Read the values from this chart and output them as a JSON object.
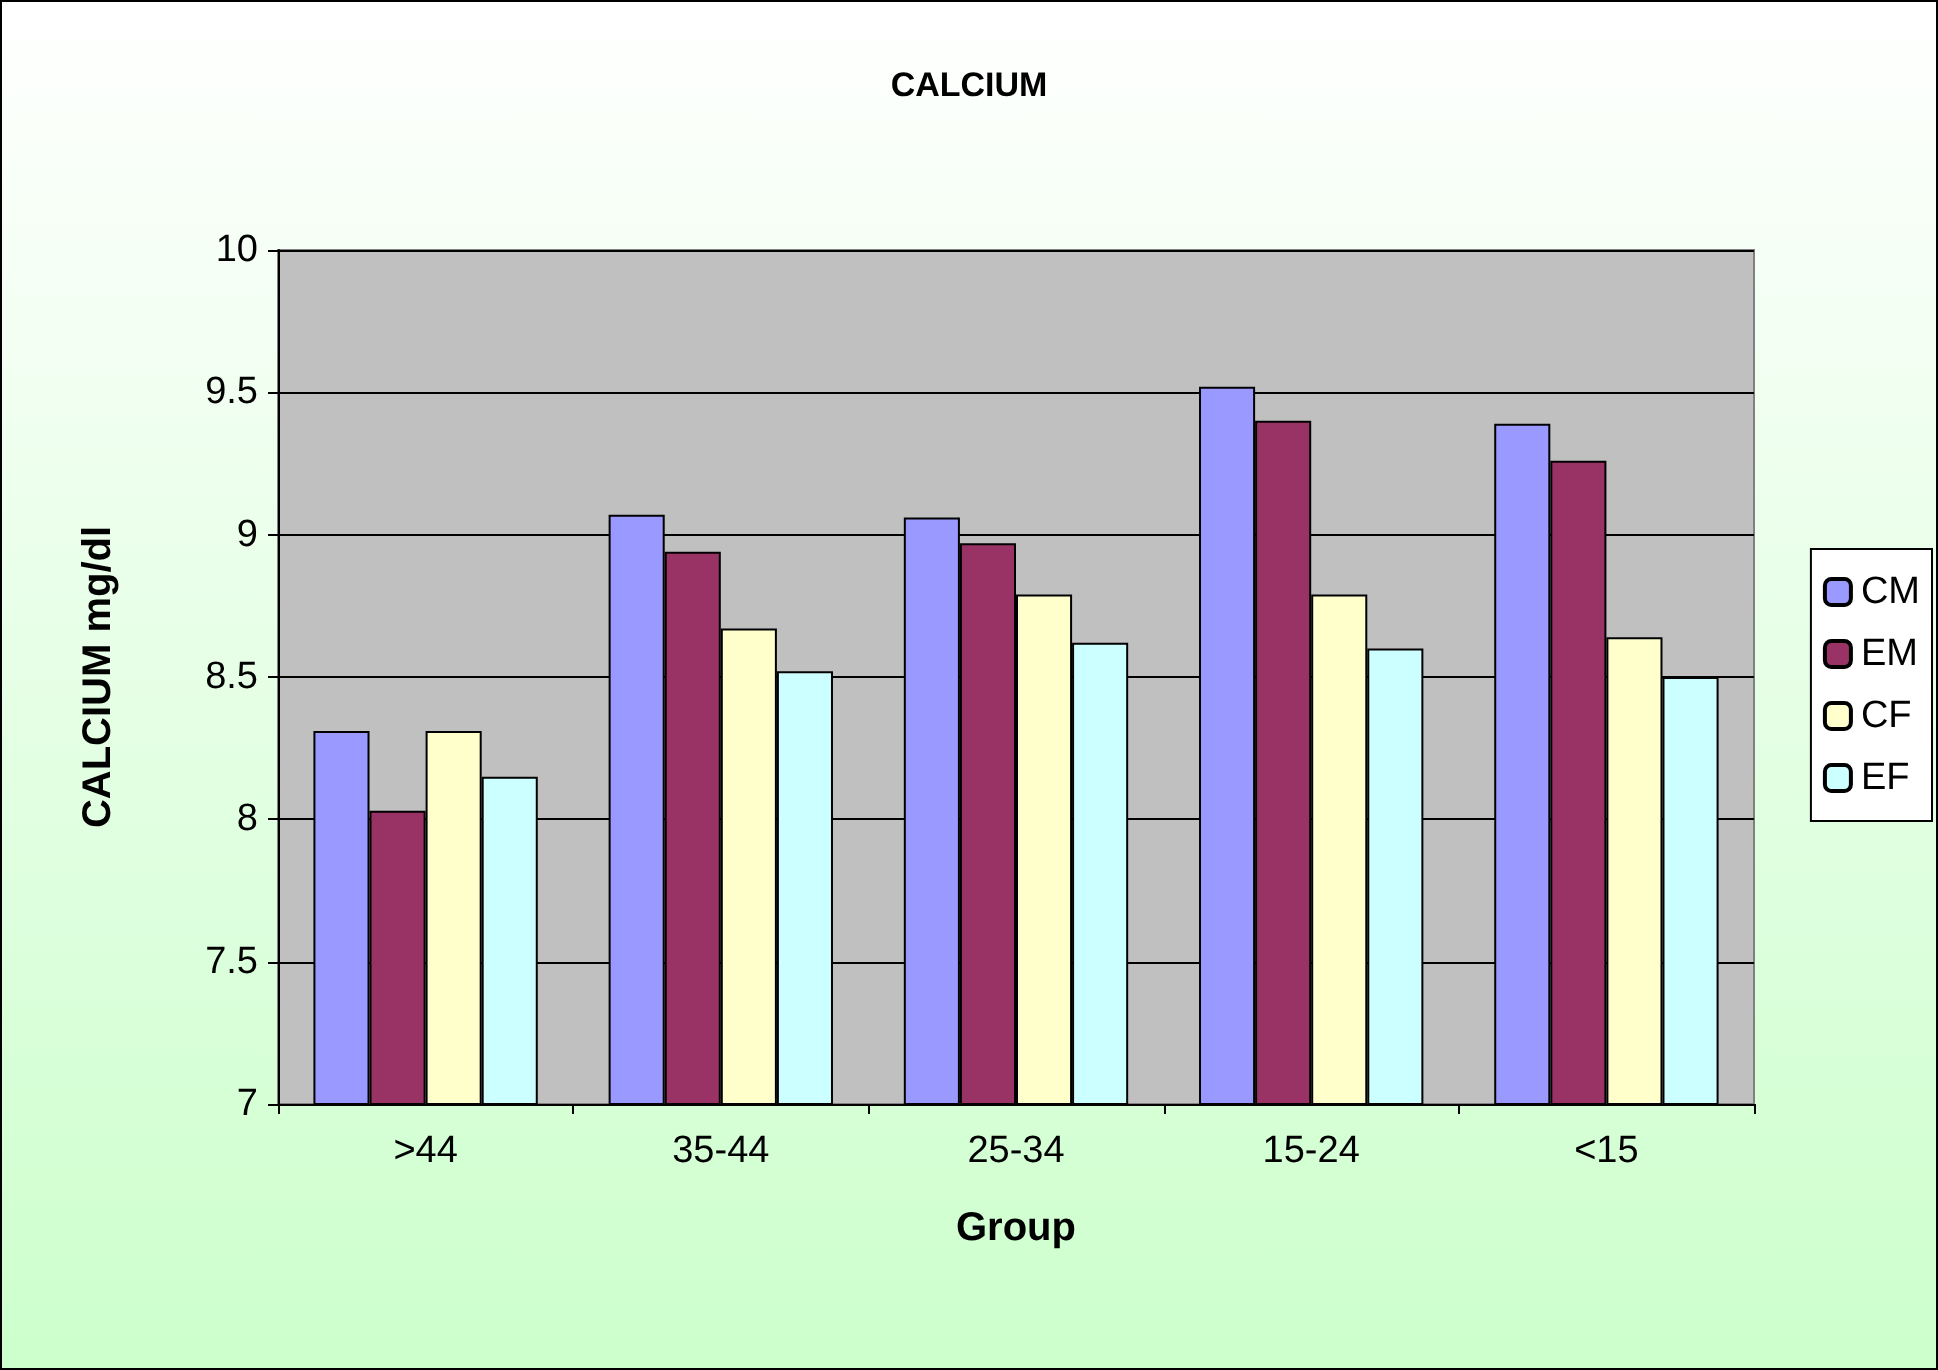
{
  "chart_data": {
    "type": "bar",
    "title": "CALCIUM",
    "xlabel": "Group",
    "ylabel": "CALCIUM mg/dl",
    "categories": [
      ">44",
      "35-44",
      "25-34",
      "15-24",
      "<15"
    ],
    "series": [
      {
        "name": "CM",
        "color": "#9999ff",
        "values": [
          8.31,
          9.07,
          9.06,
          9.52,
          9.39
        ]
      },
      {
        "name": "EM",
        "color": "#993366",
        "values": [
          8.03,
          8.94,
          8.97,
          9.4,
          9.26
        ]
      },
      {
        "name": "CF",
        "color": "#ffffcc",
        "values": [
          8.31,
          8.67,
          8.79,
          8.79,
          8.64
        ]
      },
      {
        "name": "EF",
        "color": "#ccffff",
        "values": [
          8.15,
          8.52,
          8.62,
          8.6,
          8.5
        ]
      }
    ],
    "ylim": [
      7,
      10
    ],
    "yticks": [
      7,
      7.5,
      8,
      8.5,
      9,
      9.5,
      10
    ],
    "grid": "y",
    "legend": "right"
  }
}
